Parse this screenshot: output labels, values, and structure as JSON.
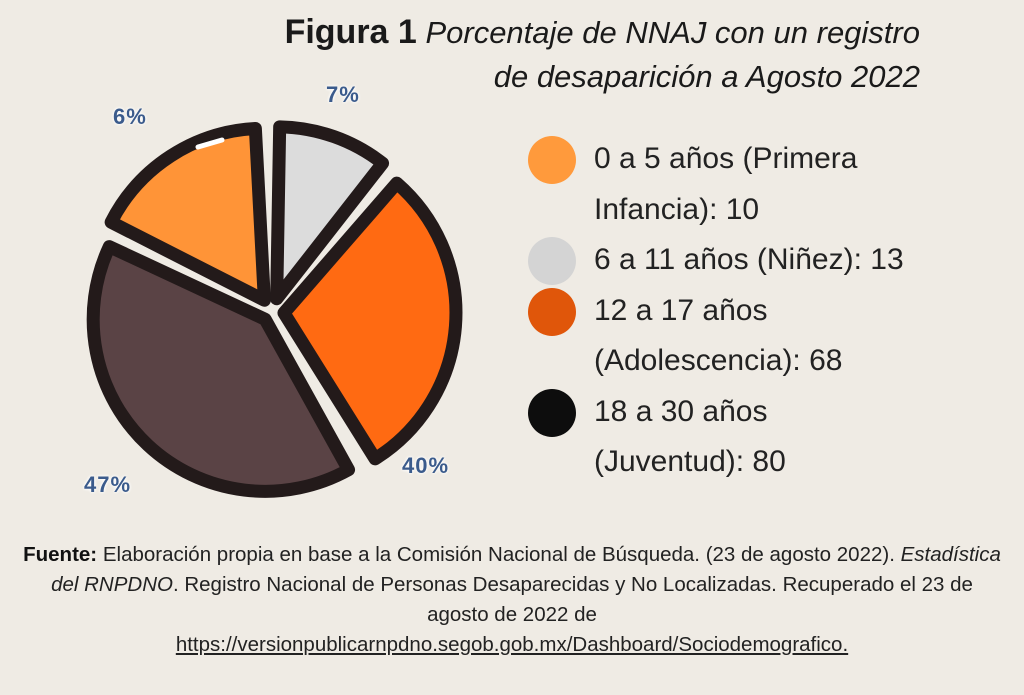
{
  "chart_data": {
    "type": "pie",
    "title_prefix": "Figura 1",
    "title": "Porcentaje de NNAJ con un registro de desaparición a Agosto 2022",
    "slices": [
      {
        "label": "0 a 5 años (Primera Infancia): 10",
        "count": 10,
        "percent_label": "6%",
        "color": "#ff9437"
      },
      {
        "label": "6 a 11 años (Niñez): 13",
        "count": 13,
        "percent_label": "7%",
        "color": "#dcdcdc"
      },
      {
        "label": "12 a 17 años (Adolescencia): 68",
        "count": 68,
        "percent_label": "40%",
        "color": "#ff6a12"
      },
      {
        "label": "18 a 30 años (Juventud): 80",
        "count": 80,
        "percent_label": "47%",
        "color": "#5a4345"
      }
    ],
    "legend_colors": [
      "#ff9a3c",
      "#d4d4d4",
      "#e0560a",
      "#0d0d0d"
    ],
    "legend_position": "right",
    "outline_color": "#231a1a",
    "label_color": "#3b5b8c"
  },
  "source": {
    "label": "Fuente:",
    "text1": " Elaboración propia en base a la Comisión Nacional de Búsqueda. (23 de agosto 2022). ",
    "italic": "Estadística del RNPDNO",
    "text2": ". Registro Nacional de Personas Desaparecidas y No Localizadas. Recuperado el 23 de agosto de 2022 de",
    "url": "https://versionpublicarnpdno.segob.gob.mx/Dashboard/Sociodemografico. "
  }
}
